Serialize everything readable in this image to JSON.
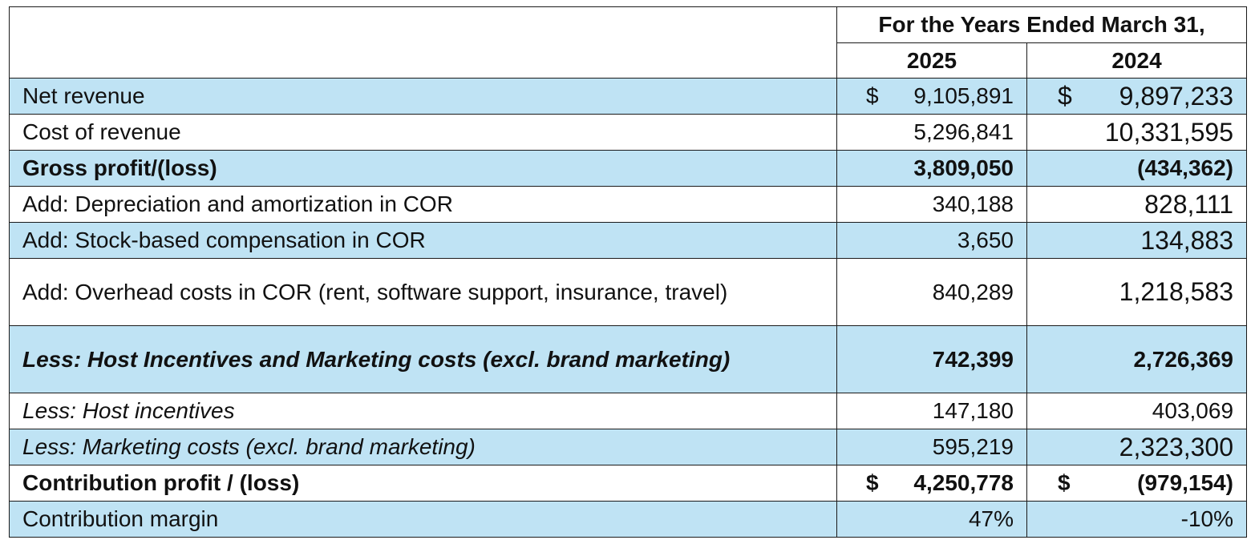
{
  "header": {
    "period_label": "For the Years Ended March 31,",
    "year_1": "2025",
    "year_2": "2024"
  },
  "rows": [
    {
      "label": "Net revenue",
      "cur_2025": "$",
      "v2025": "9,105,891",
      "cur_2024": "$",
      "v2024": "9,897,233"
    },
    {
      "label": "Cost of revenue",
      "v2025": "5,296,841",
      "v2024": "10,331,595"
    },
    {
      "label": "Gross profit/(loss)",
      "v2025": "3,809,050",
      "v2024": "(434,362)"
    },
    {
      "label": "Add: Depreciation and amortization in COR",
      "v2025": "340,188",
      "v2024": "828,111"
    },
    {
      "label": "Add: Stock-based compensation in COR",
      "v2025": "3,650",
      "v2024": "134,883"
    },
    {
      "label": "Add: Overhead costs in COR  (rent, software support, insurance, travel)",
      "v2025": "840,289",
      "v2024": "1,218,583"
    },
    {
      "label": "Less: Host Incentives and Marketing costs (excl. brand marketing)",
      "v2025": "742,399",
      "v2024": "2,726,369"
    },
    {
      "label": "Less: Host incentives",
      "v2025": "147,180",
      "v2024": "403,069"
    },
    {
      "label": "Less: Marketing costs (excl. brand marketing)",
      "v2025": "595,219",
      "v2024": "2,323,300"
    },
    {
      "label": "Contribution profit / (loss)",
      "cur_2025": "$",
      "v2025": "4,250,778",
      "cur_2024": "$",
      "v2024": "(979,154)"
    },
    {
      "label": "Contribution margin",
      "v2025": "47%",
      "v2024": "-10%"
    }
  ],
  "colors": {
    "row_highlight": "#bfe3f4",
    "border": "#1a1a1a"
  }
}
